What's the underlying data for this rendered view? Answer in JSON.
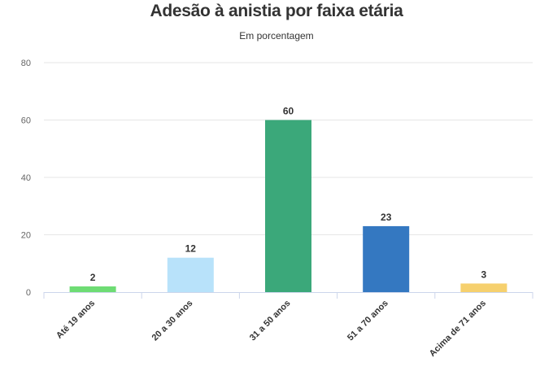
{
  "chart_data": {
    "type": "bar",
    "title": "Adesão à anistia por faixa etária",
    "subtitle": "Em porcentagem",
    "categories": [
      "Até 19 anos",
      "20 a 30 anos",
      "31 a 50 anos",
      "51 a 70 anos",
      "Acima de 71 anos"
    ],
    "values": [
      2,
      12,
      60,
      23,
      3
    ],
    "colors": [
      "#6edc74",
      "#b8e2fa",
      "#3ba87a",
      "#3478c1",
      "#f6d06e"
    ],
    "ylim": [
      0,
      80
    ],
    "yticks": [
      0,
      20,
      40,
      60,
      80
    ],
    "grid": true,
    "legend": "none",
    "data_labels": true
  }
}
